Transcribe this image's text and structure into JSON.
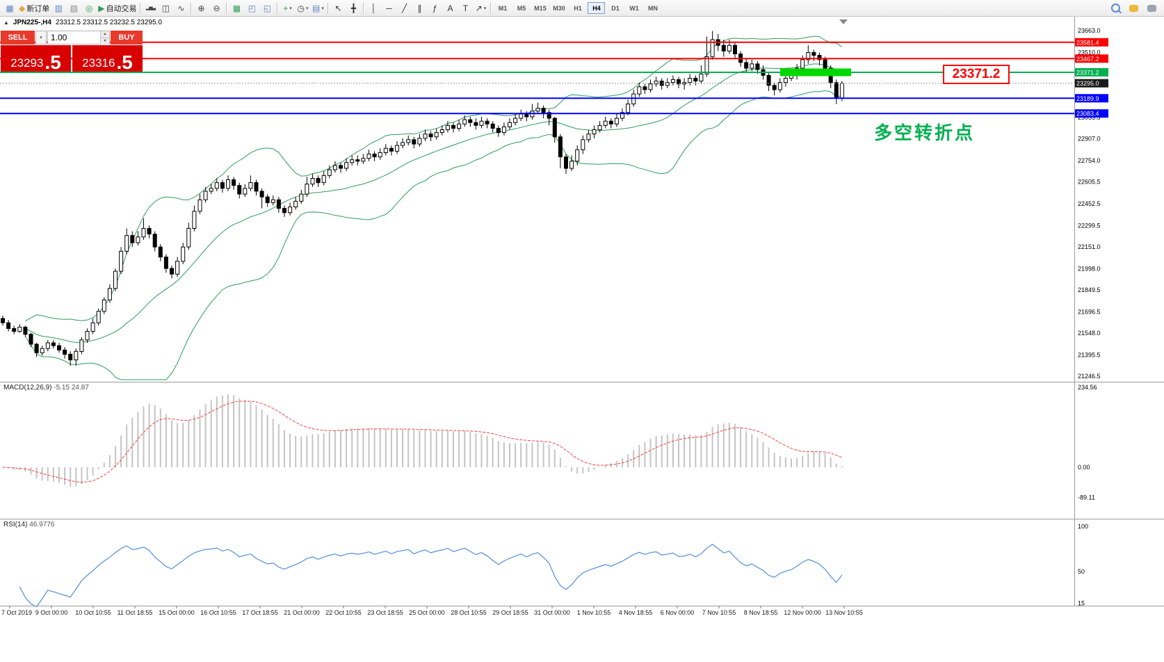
{
  "ui": {
    "dropdown_glyph": "▾",
    "spinner_up": "▴",
    "spinner_down": "▾"
  },
  "toolbar": {
    "groups": [
      {
        "items": [
          {
            "name": "terminal-icon",
            "glyph": "▦",
            "color": "#5b87c5"
          },
          {
            "name": "new-order-button",
            "glyph": "◆",
            "color": "#e8a33d",
            "label": "新订单"
          },
          {
            "name": "charts-icon",
            "glyph": "▥",
            "color": "#5b87c5"
          },
          {
            "name": "profiles-icon",
            "glyph": "▧",
            "color": "#8b8b8b"
          },
          {
            "name": "experts-icon",
            "glyph": "◎",
            "color": "#2e9e4f"
          },
          {
            "name": "autotrading-button",
            "glyph": "▶",
            "color": "#2e9e4f",
            "label": "自动交易"
          }
        ]
      },
      {
        "items": [
          {
            "name": "bar-chart-icon",
            "glyph": "▂▅▃",
            "color": "#444",
            "small": true
          },
          {
            "name": "candlestick-chart-icon",
            "glyph": "◫",
            "color": "#444"
          },
          {
            "name": "line-chart-icon",
            "glyph": "∿",
            "color": "#444"
          }
        ]
      },
      {
        "items": [
          {
            "name": "zoom-in-icon",
            "glyph": "⊕",
            "color": "#444"
          },
          {
            "name": "zoom-out-icon",
            "glyph": "⊖",
            "color": "#444"
          }
        ]
      },
      {
        "items": [
          {
            "name": "indicators-grid-icon",
            "glyph": "▦",
            "color": "#2e9e4f"
          },
          {
            "name": "tile-windows-icon",
            "glyph": "◰",
            "color": "#5b87c5"
          },
          {
            "name": "cascade-windows-icon",
            "glyph": "◱",
            "color": "#5b87c5"
          }
        ]
      },
      {
        "items": [
          {
            "name": "add-indicator-dropdown",
            "glyph": "+",
            "color": "#2e9e4f",
            "dropdown": true
          },
          {
            "name": "period-dropdown",
            "glyph": "◷",
            "color": "#444",
            "dropdown": true
          },
          {
            "name": "template-dropdown",
            "glyph": "▤",
            "color": "#5b87c5",
            "dropdown": true
          }
        ]
      },
      {
        "items": [
          {
            "name": "cursor-icon",
            "glyph": "↖",
            "color": "#333"
          },
          {
            "name": "crosshair-icon",
            "glyph": "╋",
            "color": "#333"
          }
        ]
      },
      {
        "items": [
          {
            "name": "vertical-line-icon",
            "glyph": "│",
            "color": "#333"
          },
          {
            "name": "horizontal-line-icon",
            "glyph": "─",
            "color": "#333"
          },
          {
            "name": "trendline-icon",
            "glyph": "╱",
            "color": "#333"
          },
          {
            "name": "channel-icon",
            "glyph": "∥",
            "color": "#333"
          },
          {
            "name": "fibonacci-icon",
            "glyph": "ƒ",
            "color": "#333"
          },
          {
            "name": "text-icon",
            "glyph": "A",
            "color": "#333"
          },
          {
            "name": "label-icon",
            "glyph": "T",
            "color": "#333"
          },
          {
            "name": "arrows-dropdown",
            "glyph": "↗",
            "color": "#333",
            "dropdown": true
          }
        ]
      }
    ],
    "right_icons": [
      {
        "name": "search-icon",
        "css": "mag"
      },
      {
        "name": "chat-icon",
        "css": "bub"
      },
      {
        "name": "community-icon",
        "css": "bub gray"
      }
    ]
  },
  "timeframes": {
    "items": [
      "M1",
      "M5",
      "M15",
      "M30",
      "H1",
      "H4",
      "D1",
      "W1",
      "MN"
    ],
    "active": "H4"
  },
  "chart": {
    "toggle_glyph": "▲",
    "symbol_header": "JPN225-,H4",
    "ohlc": "23312.5 23312.5 23232.5 23295.0"
  },
  "trade_panel": {
    "sell_label": "SELL",
    "buy_label": "BUY",
    "volume": "1.00",
    "sell_price_main": "23293",
    "sell_price_pips": ".5",
    "buy_price_main": "23316",
    "buy_price_pips": ".5"
  },
  "annotations": {
    "price_callout": "23371.2",
    "turning_point_text": "多空转折点"
  },
  "macd": {
    "label": "MACD(12,26,9)",
    "values": "-5.15 24.87"
  },
  "rsi": {
    "label": "RSI(14)",
    "value": "46.9776"
  },
  "chart_data": {
    "type": "candlestick",
    "symbol": "JPN225-",
    "timeframe": "H4",
    "title": "JPN225-,H4",
    "ohlc_current": {
      "open": 23312.5,
      "high": 23312.5,
      "low": 23232.5,
      "close": 23295.0
    },
    "ylim": [
      21246.5,
      23663.0
    ],
    "y_axis_labels": [
      "23663.0",
      "23510.0",
      "23055.5",
      "22907.0",
      "22754.0",
      "22605.5",
      "22452.5",
      "22299.5",
      "22151.0",
      "21998.0",
      "21849.5",
      "21696.5",
      "21548.0",
      "21395.5",
      "21246.5"
    ],
    "x_axis_labels": [
      "7 Oct 2019",
      "9 Oct 00:00",
      "10 Oct 10:55",
      "11 Oct 18:55",
      "15 Oct 00:00",
      "16 Oct 10:55",
      "17 Oct 18:55",
      "21 Oct 00:00",
      "22 Oct 10:55",
      "23 Oct 18:55",
      "25 Oct 00:00",
      "28 Oct 10:55",
      "29 Oct 18:55",
      "31 Oct 00:00",
      "1 Nov 10:55",
      "4 Nov 18:55",
      "6 Nov 00:00",
      "7 Nov 10:55",
      "8 Nov 18:55",
      "12 Nov 00:00",
      "13 Nov 10:55"
    ],
    "levels": [
      {
        "price": 23581.4,
        "color": "#ff0000",
        "tag_bg": "#ff0000"
      },
      {
        "price": 23467.2,
        "color": "#ff0000",
        "tag_bg": "#ff0000"
      },
      {
        "price": 23371.2,
        "color": "#00b050",
        "tag_bg": "#00b050"
      },
      {
        "price": 23295.0,
        "color": "#999999",
        "tag_bg": "#1a1a1a",
        "style": "dotted"
      },
      {
        "price": 23189.9,
        "color": "#0000ff",
        "tag_bg": "#0000ff"
      },
      {
        "price": 23083.4,
        "color": "#0000ff",
        "tag_bg": "#0000ff"
      }
    ],
    "highlight_rect": {
      "price": 23371.2,
      "color": "#00d800"
    },
    "bollinger": {
      "period": 20,
      "deviation": 2,
      "color": "#2a9d5c"
    },
    "macd": {
      "fast": 12,
      "slow": 26,
      "signal": 9,
      "main": -5.15,
      "signal_value": 24.87,
      "scale": [
        234.56,
        0.0,
        -89.11
      ],
      "histogram_color": "#c4c4c4",
      "signal_color": "#ff3b3b"
    },
    "rsi": {
      "period": 14,
      "value": 46.9776,
      "scale": [
        100,
        50,
        15
      ],
      "color": "#4f8fdd"
    },
    "candles": [
      [
        21650,
        21670,
        21600,
        21620
      ],
      [
        21620,
        21640,
        21560,
        21580
      ],
      [
        21580,
        21600,
        21540,
        21560
      ],
      [
        21560,
        21610,
        21550,
        21590
      ],
      [
        21590,
        21600,
        21520,
        21540
      ],
      [
        21540,
        21550,
        21450,
        21470
      ],
      [
        21470,
        21480,
        21380,
        21410
      ],
      [
        21410,
        21460,
        21390,
        21440
      ],
      [
        21440,
        21500,
        21420,
        21480
      ],
      [
        21480,
        21500,
        21440,
        21460
      ],
      [
        21460,
        21480,
        21410,
        21430
      ],
      [
        21430,
        21450,
        21370,
        21400
      ],
      [
        21400,
        21420,
        21320,
        21360
      ],
      [
        21360,
        21440,
        21320,
        21420
      ],
      [
        21420,
        21520,
        21400,
        21500
      ],
      [
        21500,
        21580,
        21480,
        21560
      ],
      [
        21560,
        21650,
        21540,
        21620
      ],
      [
        21620,
        21720,
        21600,
        21700
      ],
      [
        21700,
        21800,
        21680,
        21780
      ],
      [
        21780,
        21890,
        21760,
        21860
      ],
      [
        21860,
        22000,
        21840,
        21980
      ],
      [
        21980,
        22150,
        21960,
        22120
      ],
      [
        22120,
        22280,
        22100,
        22230
      ],
      [
        22230,
        22260,
        22150,
        22180
      ],
      [
        22180,
        22260,
        22160,
        22220
      ],
      [
        22220,
        22350,
        22200,
        22280
      ],
      [
        22280,
        22300,
        22210,
        22240
      ],
      [
        22240,
        22260,
        22120,
        22150
      ],
      [
        22150,
        22170,
        22050,
        22080
      ],
      [
        22080,
        22100,
        21970,
        22000
      ],
      [
        22000,
        22020,
        21930,
        21960
      ],
      [
        21960,
        22080,
        21940,
        22050
      ],
      [
        22050,
        22180,
        22030,
        22150
      ],
      [
        22150,
        22320,
        22130,
        22280
      ],
      [
        22280,
        22440,
        22260,
        22400
      ],
      [
        22400,
        22520,
        22380,
        22480
      ],
      [
        22480,
        22570,
        22460,
        22540
      ],
      [
        22540,
        22590,
        22520,
        22560
      ],
      [
        22560,
        22630,
        22540,
        22600
      ],
      [
        22600,
        22620,
        22530,
        22560
      ],
      [
        22560,
        22650,
        22540,
        22620
      ],
      [
        22620,
        22640,
        22550,
        22580
      ],
      [
        22580,
        22600,
        22490,
        22520
      ],
      [
        22520,
        22590,
        22500,
        22560
      ],
      [
        22560,
        22650,
        22540,
        22600
      ],
      [
        22600,
        22620,
        22510,
        22540
      ],
      [
        22540,
        22560,
        22420,
        22500
      ],
      [
        22500,
        22520,
        22430,
        22460
      ],
      [
        22460,
        22510,
        22440,
        22480
      ],
      [
        22480,
        22500,
        22390,
        22420
      ],
      [
        22420,
        22440,
        22360,
        22390
      ],
      [
        22390,
        22460,
        22370,
        22430
      ],
      [
        22430,
        22500,
        22410,
        22470
      ],
      [
        22470,
        22550,
        22450,
        22520
      ],
      [
        22520,
        22640,
        22500,
        22590
      ],
      [
        22590,
        22660,
        22570,
        22630
      ],
      [
        22630,
        22650,
        22570,
        22600
      ],
      [
        22600,
        22680,
        22580,
        22650
      ],
      [
        22650,
        22720,
        22630,
        22690
      ],
      [
        22690,
        22750,
        22670,
        22720
      ],
      [
        22720,
        22740,
        22670,
        22700
      ],
      [
        22700,
        22770,
        22680,
        22740
      ],
      [
        22740,
        22790,
        22720,
        22760
      ],
      [
        22760,
        22790,
        22720,
        22750
      ],
      [
        22750,
        22800,
        22730,
        22770
      ],
      [
        22770,
        22830,
        22750,
        22800
      ],
      [
        22800,
        22820,
        22750,
        22780
      ],
      [
        22780,
        22840,
        22760,
        22810
      ],
      [
        22810,
        22870,
        22790,
        22840
      ],
      [
        22840,
        22860,
        22790,
        22820
      ],
      [
        22820,
        22890,
        22800,
        22860
      ],
      [
        22860,
        22910,
        22840,
        22880
      ],
      [
        22880,
        22930,
        22860,
        22900
      ],
      [
        22900,
        22920,
        22840,
        22870
      ],
      [
        22870,
        22940,
        22850,
        22910
      ],
      [
        22910,
        22970,
        22890,
        22940
      ],
      [
        22940,
        22960,
        22890,
        22920
      ],
      [
        22920,
        22980,
        22900,
        22950
      ],
      [
        22950,
        23000,
        22930,
        22970
      ],
      [
        22970,
        23030,
        22950,
        23000
      ],
      [
        23000,
        23020,
        22950,
        22980
      ],
      [
        22980,
        23040,
        22960,
        23010
      ],
      [
        23010,
        23070,
        22990,
        23040
      ],
      [
        23040,
        23060,
        22990,
        23020
      ],
      [
        23020,
        23050,
        22970,
        23000
      ],
      [
        23000,
        23060,
        22980,
        23030
      ],
      [
        23030,
        23050,
        22980,
        23010
      ],
      [
        23010,
        23030,
        22950,
        22980
      ],
      [
        22980,
        23000,
        22920,
        22950
      ],
      [
        22950,
        23020,
        22930,
        22990
      ],
      [
        22990,
        23050,
        22970,
        23020
      ],
      [
        23020,
        23080,
        23000,
        23050
      ],
      [
        23050,
        23110,
        23030,
        23080
      ],
      [
        23080,
        23100,
        23030,
        23060
      ],
      [
        23060,
        23150,
        23040,
        23100
      ],
      [
        23100,
        23160,
        23080,
        23120
      ],
      [
        23120,
        23140,
        23050,
        23090
      ],
      [
        23090,
        23110,
        23000,
        23050
      ],
      [
        23050,
        23060,
        22880,
        22920
      ],
      [
        22920,
        22940,
        22700,
        22780
      ],
      [
        22780,
        22800,
        22660,
        22700
      ],
      [
        22700,
        22790,
        22680,
        22750
      ],
      [
        22750,
        22860,
        22720,
        22830
      ],
      [
        22830,
        22930,
        22800,
        22900
      ],
      [
        22900,
        22970,
        22880,
        22940
      ],
      [
        22940,
        23000,
        22910,
        22970
      ],
      [
        22970,
        23030,
        22950,
        23000
      ],
      [
        23000,
        23060,
        22980,
        23030
      ],
      [
        23030,
        23050,
        22980,
        23010
      ],
      [
        23010,
        23080,
        22990,
        23050
      ],
      [
        23050,
        23120,
        23030,
        23090
      ],
      [
        23090,
        23180,
        23070,
        23150
      ],
      [
        23150,
        23250,
        23130,
        23220
      ],
      [
        23220,
        23300,
        23200,
        23270
      ],
      [
        23270,
        23290,
        23220,
        23250
      ],
      [
        23250,
        23320,
        23230,
        23290
      ],
      [
        23290,
        23340,
        23270,
        23310
      ],
      [
        23310,
        23330,
        23250,
        23280
      ],
      [
        23280,
        23330,
        23260,
        23300
      ],
      [
        23300,
        23350,
        23280,
        23320
      ],
      [
        23320,
        23340,
        23260,
        23290
      ],
      [
        23290,
        23330,
        23250,
        23300
      ],
      [
        23300,
        23360,
        23280,
        23330
      ],
      [
        23330,
        23350,
        23280,
        23310
      ],
      [
        23310,
        23420,
        23290,
        23360
      ],
      [
        23360,
        23620,
        23340,
        23480
      ],
      [
        23480,
        23660,
        23460,
        23600
      ],
      [
        23600,
        23640,
        23520,
        23560
      ],
      [
        23560,
        23600,
        23480,
        23520
      ],
      [
        23520,
        23600,
        23500,
        23560
      ],
      [
        23560,
        23580,
        23470,
        23500
      ],
      [
        23500,
        23520,
        23410,
        23440
      ],
      [
        23440,
        23470,
        23370,
        23400
      ],
      [
        23400,
        23460,
        23380,
        23430
      ],
      [
        23430,
        23450,
        23360,
        23390
      ],
      [
        23390,
        23420,
        23320,
        23350
      ],
      [
        23350,
        23370,
        23240,
        23280
      ],
      [
        23280,
        23300,
        23210,
        23250
      ],
      [
        23250,
        23330,
        23230,
        23300
      ],
      [
        23300,
        23360,
        23270,
        23330
      ],
      [
        23330,
        23380,
        23310,
        23350
      ],
      [
        23350,
        23430,
        23320,
        23400
      ],
      [
        23400,
        23490,
        23380,
        23460
      ],
      [
        23460,
        23560,
        23430,
        23510
      ],
      [
        23510,
        23530,
        23450,
        23490
      ],
      [
        23490,
        23510,
        23420,
        23460
      ],
      [
        23460,
        23480,
        23360,
        23400
      ],
      [
        23400,
        23420,
        23260,
        23300
      ],
      [
        23300,
        23320,
        23150,
        23190
      ],
      [
        23190,
        23310,
        23170,
        23295
      ]
    ]
  }
}
